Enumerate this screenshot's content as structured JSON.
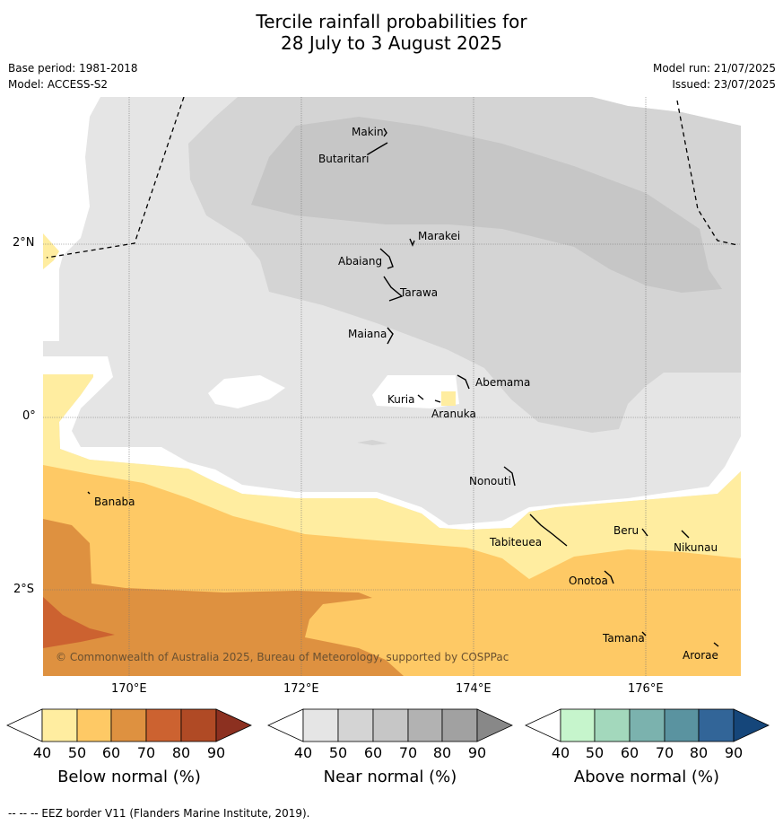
{
  "title_line1": "Tercile rainfall probabilities for",
  "title_line2": "28 July to 3 August 2025",
  "base_period": "Base period: 1981-2018",
  "model": "Model: ACCESS-S2",
  "model_run": "Model run: 21/07/2025",
  "issued": "Issued: 23/07/2025",
  "copyright": "© Commonwealth of Australia 2025, Bureau of Meteorology, supported by COSPPac",
  "lat_labels": [
    "2°N",
    "0°",
    "2°S"
  ],
  "lon_labels": [
    "170°E",
    "172°E",
    "174°E",
    "176°E"
  ],
  "islands": [
    "Makin",
    "Butaritari",
    "Marakei",
    "Abaiang",
    "Tarawa",
    "Maiana",
    "Abemama",
    "Kuria",
    "Aranuka",
    "Nonouti",
    "Banaba",
    "Tabiteuea",
    "Beru",
    "Nikunau",
    "Onotoa",
    "Tamana",
    "Arorae"
  ],
  "colorbars": [
    {
      "label": "Below normal (%)",
      "ticks": [
        "40",
        "50",
        "60",
        "70",
        "80",
        "90"
      ],
      "colors": [
        "#ffffff",
        "#ffeda0",
        "#fec965",
        "#de9140",
        "#cc6230",
        "#b04a25",
        "#8c3020"
      ]
    },
    {
      "label": "Near normal (%)",
      "ticks": [
        "40",
        "50",
        "60",
        "70",
        "80",
        "90"
      ],
      "colors": [
        "#ffffff",
        "#e5e5e5",
        "#d4d4d4",
        "#c6c6c6",
        "#b2b2b2",
        "#a1a1a1",
        "#888888"
      ]
    },
    {
      "label": "Above normal (%)",
      "ticks": [
        "40",
        "50",
        "60",
        "70",
        "80",
        "90"
      ],
      "colors": [
        "#ffffff",
        "#c6f5cc",
        "#a3d8bc",
        "#7bb2ae",
        "#5a93a0",
        "#326598",
        "#15467a"
      ]
    }
  ],
  "footer": "--  --  -- EEZ border V11 (Flanders Marine Institute, 2019)."
}
